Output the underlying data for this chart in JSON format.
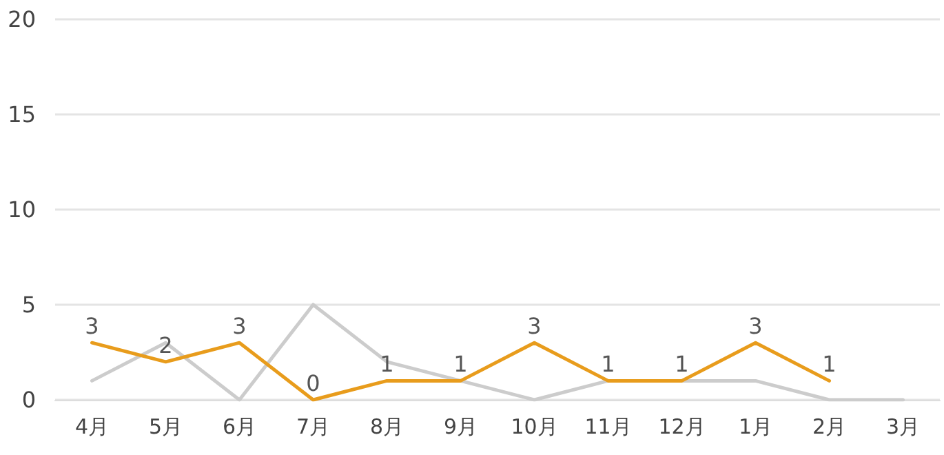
{
  "chart_data": {
    "type": "line",
    "categories": [
      "4月",
      "5月",
      "6月",
      "7月",
      "8月",
      "9月",
      "10月",
      "11月",
      "12月",
      "1月",
      "2月",
      "3月"
    ],
    "series": [
      {
        "color": "#cccccc",
        "values": [
          1,
          3,
          0,
          5,
          2,
          1,
          0,
          1,
          1,
          1,
          0,
          0
        ]
      },
      {
        "color": "#e89c1c",
        "values": [
          3,
          2,
          3,
          0,
          1,
          1,
          3,
          1,
          1,
          3,
          1,
          null
        ],
        "value_labels": [
          "3",
          "2",
          "3",
          "0",
          "1",
          "1",
          "3",
          "1",
          "1",
          "3",
          "1",
          null
        ]
      }
    ],
    "ylim": [
      0,
      20
    ],
    "yticks": [
      0,
      5,
      10,
      15,
      20
    ],
    "grid": "y",
    "marker": "none",
    "line_style": "solid"
  }
}
